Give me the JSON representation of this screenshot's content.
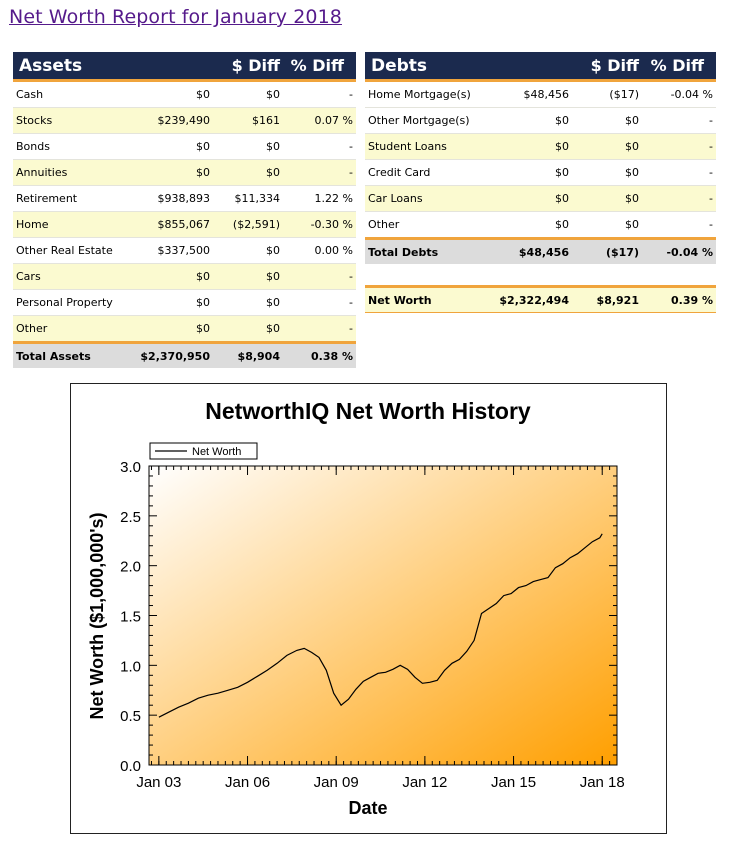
{
  "page_title": "Net Worth Report for January 2018",
  "assets": {
    "header": {
      "label": "Assets",
      "diff": "$ Diff",
      "pct": "% Diff"
    },
    "rows": [
      {
        "label": "Cash",
        "value": "$0",
        "diff": "$0",
        "pct": "-"
      },
      {
        "label": "Stocks",
        "value": "$239,490",
        "diff": "$161",
        "pct": "0.07 %"
      },
      {
        "label": "Bonds",
        "value": "$0",
        "diff": "$0",
        "pct": "-"
      },
      {
        "label": "Annuities",
        "value": "$0",
        "diff": "$0",
        "pct": "-"
      },
      {
        "label": "Retirement",
        "value": "$938,893",
        "diff": "$11,334",
        "pct": "1.22 %"
      },
      {
        "label": "Home",
        "value": "$855,067",
        "diff": "($2,591)",
        "pct": "-0.30 %"
      },
      {
        "label": "Other Real Estate",
        "value": "$337,500",
        "diff": "$0",
        "pct": "0.00 %"
      },
      {
        "label": "Cars",
        "value": "$0",
        "diff": "$0",
        "pct": "-"
      },
      {
        "label": "Personal Property",
        "value": "$0",
        "diff": "$0",
        "pct": "-"
      },
      {
        "label": "Other",
        "value": "$0",
        "diff": "$0",
        "pct": "-"
      }
    ],
    "total": {
      "label": "Total Assets",
      "value": "$2,370,950",
      "diff": "$8,904",
      "pct": "0.38 %"
    }
  },
  "debts": {
    "header": {
      "label": "Debts",
      "diff": "$ Diff",
      "pct": "% Diff"
    },
    "rows": [
      {
        "label": "Home Mortgage(s)",
        "value": "$48,456",
        "diff": "($17)",
        "pct": "-0.04 %"
      },
      {
        "label": "Other Mortgage(s)",
        "value": "$0",
        "diff": "$0",
        "pct": "-"
      },
      {
        "label": "Student Loans",
        "value": "$0",
        "diff": "$0",
        "pct": "-"
      },
      {
        "label": "Credit Card",
        "value": "$0",
        "diff": "$0",
        "pct": "-"
      },
      {
        "label": "Car Loans",
        "value": "$0",
        "diff": "$0",
        "pct": "-"
      },
      {
        "label": "Other",
        "value": "$0",
        "diff": "$0",
        "pct": "-"
      }
    ],
    "total": {
      "label": "Total Debts",
      "value": "$48,456",
      "diff": "($17)",
      "pct": "-0.04 %"
    },
    "net_worth": {
      "label": "Net Worth",
      "value": "$2,322,494",
      "diff": "$8,921",
      "pct": "0.39 %"
    }
  },
  "colors": {
    "header_bg": "#1b2a4e",
    "accent": "#f0a43c",
    "alt_row": "#fbfad0",
    "total_row": "#dcdcdc",
    "title_link": "#551a8b",
    "plot_gradient_start": "#ffffff",
    "plot_gradient_end": "#ff9f00"
  },
  "chart_data": {
    "type": "line",
    "title": "NetworthIQ Net Worth History",
    "xlabel": "Date",
    "ylabel": "Net Worth ($1,000,000's)",
    "legend": "top-left",
    "grid": false,
    "xlim": [
      "2002-09",
      "2018-07"
    ],
    "ylim": [
      0,
      3.0
    ],
    "x_ticks": [
      "Jan 03",
      "Jan 06",
      "Jan 09",
      "Jan 12",
      "Jan 15",
      "Jan 18"
    ],
    "y_ticks": [
      "0.0",
      "0.5",
      "1.0",
      "1.5",
      "2.0",
      "2.5",
      "3.0"
    ],
    "series": [
      {
        "name": "Net Worth",
        "x": [
          "2003-01",
          "2003-05",
          "2003-09",
          "2004-01",
          "2004-05",
          "2004-09",
          "2005-01",
          "2005-05",
          "2005-09",
          "2006-01",
          "2006-05",
          "2006-09",
          "2007-01",
          "2007-05",
          "2007-09",
          "2007-12",
          "2008-03",
          "2008-06",
          "2008-09",
          "2008-12",
          "2009-03",
          "2009-06",
          "2009-09",
          "2009-12",
          "2010-03",
          "2010-06",
          "2010-09",
          "2010-12",
          "2011-03",
          "2011-06",
          "2011-09",
          "2011-12",
          "2012-03",
          "2012-06",
          "2012-09",
          "2012-12",
          "2013-03",
          "2013-06",
          "2013-09",
          "2013-12",
          "2014-03",
          "2014-06",
          "2014-09",
          "2014-12",
          "2015-03",
          "2015-06",
          "2015-09",
          "2015-12",
          "2016-03",
          "2016-06",
          "2016-09",
          "2016-12",
          "2017-03",
          "2017-06",
          "2017-09",
          "2017-12",
          "2018-01"
        ],
        "values": [
          0.48,
          0.53,
          0.58,
          0.62,
          0.67,
          0.7,
          0.72,
          0.75,
          0.78,
          0.83,
          0.89,
          0.95,
          1.02,
          1.1,
          1.15,
          1.17,
          1.13,
          1.08,
          0.95,
          0.72,
          0.6,
          0.66,
          0.76,
          0.84,
          0.88,
          0.92,
          0.93,
          0.96,
          1.0,
          0.96,
          0.88,
          0.82,
          0.83,
          0.85,
          0.95,
          1.02,
          1.06,
          1.14,
          1.25,
          1.52,
          1.57,
          1.62,
          1.7,
          1.72,
          1.78,
          1.8,
          1.84,
          1.86,
          1.88,
          1.98,
          2.02,
          2.08,
          2.12,
          2.18,
          2.24,
          2.28,
          2.32
        ]
      }
    ]
  }
}
